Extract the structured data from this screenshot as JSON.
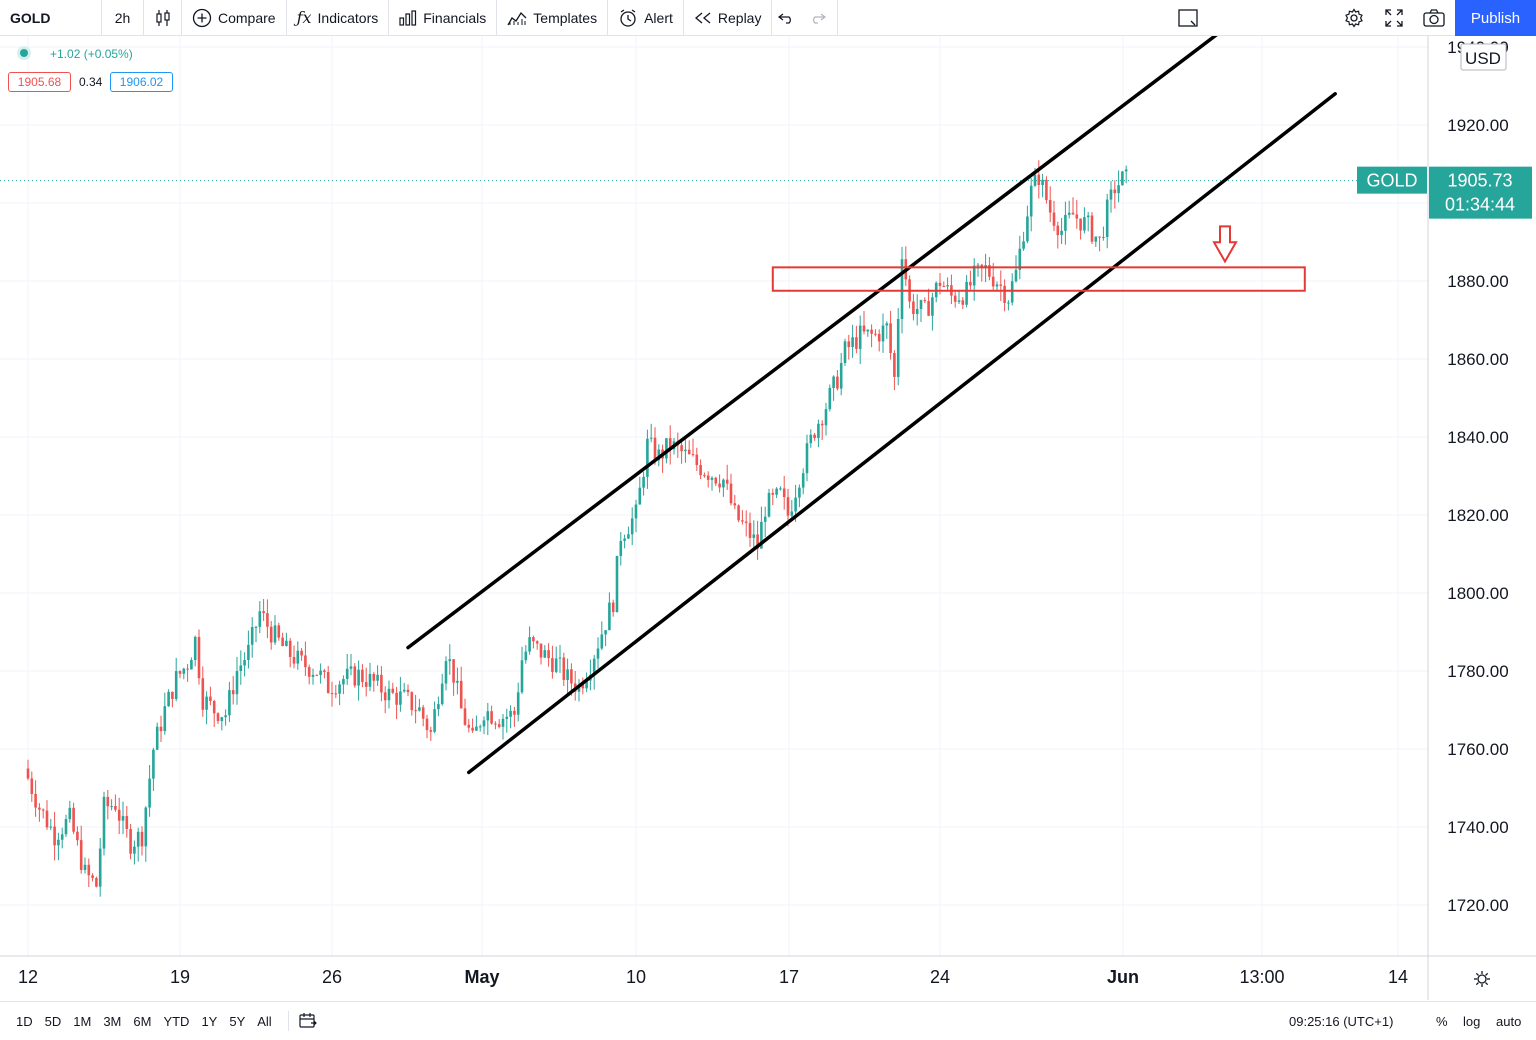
{
  "toolbar": {
    "symbol": "GOLD",
    "interval": "2h",
    "compare_label": "Compare",
    "indicators_label": "Indicators",
    "financials_label": "Financials",
    "templates_label": "Templates",
    "alert_label": "Alert",
    "replay_label": "Replay",
    "publish_label": "Publish"
  },
  "legend": {
    "change": "+1.02 (+0.05%)",
    "bid": "1905.68",
    "spread": "0.34",
    "ask": "1906.02",
    "bid_color": "#ef5350",
    "ask_color": "#2196f3"
  },
  "bottom_bar": {
    "ranges": [
      "1D",
      "5D",
      "1M",
      "3M",
      "6M",
      "YTD",
      "1Y",
      "5Y",
      "All"
    ],
    "time": "09:25:16 (UTC+1)",
    "percent_label": "%",
    "log_label": "log",
    "auto_label": "auto"
  },
  "colors": {
    "up": "#26a69a",
    "down": "#ef5350",
    "accent": "#2962ff",
    "annotation": "#e53935",
    "trendline": "#000000"
  },
  "chart_data": {
    "type": "candlestick",
    "symbol": "GOLD",
    "interval": "2h",
    "currency": "USD",
    "x_ticks": [
      "12",
      "19",
      "26",
      "May",
      "10",
      "17",
      "24",
      "Jun",
      "13:00",
      "14"
    ],
    "y_ticks": [
      1720,
      1740,
      1760,
      1780,
      1800,
      1820,
      1840,
      1860,
      1880,
      1900,
      1920,
      1940
    ],
    "ylim": [
      1707,
      1943
    ],
    "last_price": "1905.73",
    "last_price_value": 1905.73,
    "countdown": "01:34:44",
    "price_label_symbol": "GOLD",
    "grid": true,
    "price_path": [
      [
        0.0,
        1755
      ],
      [
        2.0,
        1745
      ],
      [
        4.0,
        1738
      ],
      [
        6.0,
        1742
      ],
      [
        8.0,
        1728
      ],
      [
        9.5,
        1725
      ],
      [
        10.5,
        1745
      ],
      [
        12.0,
        1746
      ],
      [
        13.0,
        1740
      ],
      [
        14.0,
        1736
      ],
      [
        15.5,
        1738
      ],
      [
        17.0,
        1760
      ],
      [
        18.5,
        1770
      ],
      [
        20.0,
        1778
      ],
      [
        21.5,
        1782
      ],
      [
        22.5,
        1788
      ],
      [
        23.5,
        1773
      ],
      [
        25.0,
        1770
      ],
      [
        26.5,
        1769
      ],
      [
        28.0,
        1780
      ],
      [
        29.5,
        1785
      ],
      [
        31.0,
        1795
      ],
      [
        32.5,
        1790
      ],
      [
        34.5,
        1785
      ],
      [
        36.5,
        1782
      ],
      [
        38.5,
        1780
      ],
      [
        40.0,
        1776
      ],
      [
        42.0,
        1778
      ],
      [
        44.0,
        1779
      ],
      [
        46.0,
        1777
      ],
      [
        48.0,
        1774
      ],
      [
        50.0,
        1773
      ],
      [
        52.0,
        1770
      ],
      [
        53.5,
        1764
      ],
      [
        55.5,
        1785
      ],
      [
        56.5,
        1779
      ],
      [
        57.5,
        1770
      ],
      [
        59.0,
        1762
      ],
      [
        60.5,
        1770
      ],
      [
        62.5,
        1768
      ],
      [
        64.5,
        1769
      ],
      [
        65.5,
        1783
      ],
      [
        66.5,
        1787
      ],
      [
        68.5,
        1784
      ],
      [
        70.0,
        1782
      ],
      [
        71.5,
        1778
      ],
      [
        73.0,
        1776
      ],
      [
        74.5,
        1782
      ],
      [
        76.0,
        1790
      ],
      [
        77.5,
        1798
      ],
      [
        78.5,
        1815
      ],
      [
        80.5,
        1820
      ],
      [
        82.0,
        1838
      ],
      [
        83.5,
        1835
      ],
      [
        85.0,
        1838
      ],
      [
        86.5,
        1836
      ],
      [
        88.5,
        1833
      ],
      [
        90.0,
        1831
      ],
      [
        92.0,
        1829
      ],
      [
        93.5,
        1820
      ],
      [
        95.5,
        1815
      ],
      [
        96.5,
        1812
      ],
      [
        97.5,
        1822
      ],
      [
        99.5,
        1825
      ],
      [
        100.5,
        1820
      ],
      [
        102.0,
        1830
      ],
      [
        104.0,
        1842
      ],
      [
        105.5,
        1848
      ],
      [
        107.0,
        1855
      ],
      [
        108.0,
        1862
      ],
      [
        110.0,
        1866
      ],
      [
        112.0,
        1866
      ],
      [
        113.5,
        1868
      ],
      [
        114.5,
        1855
      ],
      [
        115.5,
        1888
      ],
      [
        116.5,
        1874
      ],
      [
        118.5,
        1872
      ],
      [
        120.5,
        1880
      ],
      [
        122.0,
        1876
      ],
      [
        124.0,
        1877
      ],
      [
        125.0,
        1881
      ],
      [
        126.5,
        1883
      ],
      [
        128.0,
        1880
      ],
      [
        129.5,
        1876
      ],
      [
        130.5,
        1882
      ],
      [
        131.5,
        1893
      ],
      [
        132.5,
        1903
      ],
      [
        133.5,
        1907
      ],
      [
        135.0,
        1898
      ],
      [
        136.5,
        1893
      ],
      [
        138.0,
        1897
      ],
      [
        140.0,
        1894
      ],
      [
        141.5,
        1890
      ],
      [
        142.5,
        1898
      ],
      [
        143.5,
        1904
      ],
      [
        144.5,
        1906
      ]
    ],
    "annotations": [
      {
        "type": "trendline",
        "name": "channel-upper",
        "points": [
          [
            50,
            1786
          ],
          [
            159,
            1947
          ]
        ]
      },
      {
        "type": "trendline",
        "name": "channel-lower",
        "points": [
          [
            58,
            1754
          ],
          [
            172,
            1928
          ]
        ]
      },
      {
        "type": "rectangle",
        "name": "support-zone",
        "x": [
          98,
          168
        ],
        "y": [
          1877.5,
          1883.5
        ]
      },
      {
        "type": "arrow-down",
        "name": "arrow",
        "x": 157.5,
        "y": [
          1894,
          1885
        ]
      }
    ]
  }
}
